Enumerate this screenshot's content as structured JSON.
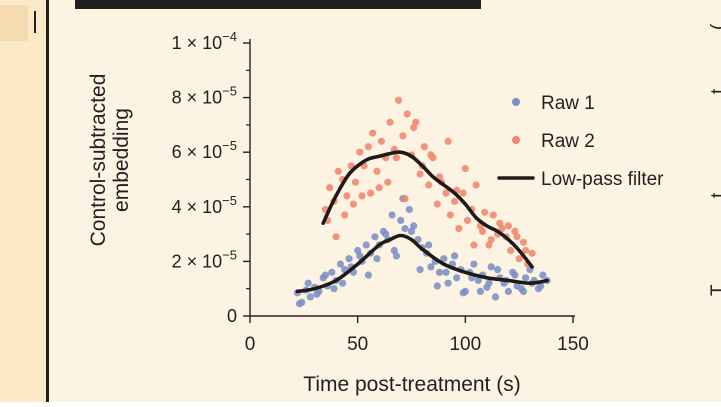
{
  "colors": {
    "panel_bg": "#fcf3e3",
    "left_strip_bg": "#fbe9c8",
    "dark": "#231f20",
    "raw1": "#7b8fc6",
    "raw2": "#f0866e",
    "filter": "#1f1a17"
  },
  "chart_data": {
    "type": "scatter",
    "title": "",
    "xlabel": "Time post-treatment (s)",
    "ylabel_lines": [
      "Control-subtracted",
      "embedding"
    ],
    "xlim": [
      0,
      150
    ],
    "ylim": [
      0,
      0.0001
    ],
    "x_ticks": [
      0,
      50,
      100,
      150
    ],
    "x_tick_labels": [
      "0",
      "50",
      "100",
      "150"
    ],
    "y_ticks": [
      0,
      2e-05,
      4e-05,
      6e-05,
      8e-05,
      0.0001
    ],
    "y_tick_labels": [
      {
        "base": "0",
        "exp": ""
      },
      {
        "base": "2 × 10",
        "exp": "−5"
      },
      {
        "base": "4 × 10",
        "exp": "−5"
      },
      {
        "base": "6 × 10",
        "exp": "−5"
      },
      {
        "base": "8 × 10",
        "exp": "−5"
      },
      {
        "base": "1 × 10",
        "exp": "−4"
      }
    ],
    "legend_position": "top-right",
    "legend": [
      {
        "label": "Raw 1",
        "kind": "marker",
        "series": "raw1"
      },
      {
        "label": "Raw 2",
        "kind": "marker",
        "series": "raw2"
      },
      {
        "label": "Low-pass filter",
        "kind": "line",
        "series": "filter"
      }
    ],
    "series": [
      {
        "name": "Raw 1",
        "kind": "scatter",
        "color_key": "raw1",
        "x": [
          22,
          24,
          26,
          28,
          30,
          32,
          34,
          36,
          38,
          40,
          42,
          44,
          46,
          48,
          50,
          52,
          54,
          56,
          58,
          60,
          62,
          64,
          66,
          68,
          70,
          72,
          74,
          76,
          78,
          80,
          82,
          84,
          86,
          88,
          90,
          92,
          94,
          96,
          98,
          100,
          102,
          104,
          106,
          108,
          110,
          112,
          114,
          116,
          118,
          120,
          122,
          124,
          126,
          128,
          130,
          132,
          134,
          136,
          138,
          23,
          27,
          31,
          35,
          39,
          43,
          47,
          51,
          55,
          59,
          63,
          67,
          71,
          75,
          79,
          83,
          87,
          91,
          95,
          99,
          103,
          107,
          111,
          115,
          119,
          123,
          127,
          131,
          135
        ],
        "y": [
          8.5e-06,
          5e-06,
          9.5e-06,
          7e-06,
          1.05e-05,
          9e-06,
          1.4e-05,
          1.1e-05,
          1.6e-05,
          1.3e-05,
          1.9e-05,
          1.7e-05,
          2.1e-05,
          1.6e-05,
          2.4e-05,
          2e-05,
          2.6e-05,
          2.3e-05,
          2.9e-05,
          2.6e-05,
          3.1e-05,
          2.8e-05,
          3.7e-05,
          2.2e-05,
          3.5e-05,
          3.2e-05,
          3.9e-05,
          3.3e-05,
          2.8e-05,
          2.5e-05,
          2.3e-05,
          1.8e-05,
          2e-05,
          1.6e-05,
          2.1e-05,
          1.2e-05,
          1.9e-05,
          1.4e-05,
          1.7e-05,
          9e-06,
          1.6e-05,
          1.9e-05,
          1.3e-05,
          1.5e-05,
          1.05e-05,
          1.8e-05,
          7e-06,
          1.4e-05,
          1.2e-05,
          9e-06,
          1.6e-05,
          1.1e-05,
          1e-05,
          1.4e-05,
          1.7e-05,
          1.3e-05,
          1e-05,
          1.5e-05,
          1.3e-05,
          4.5e-06,
          1.2e-05,
          8e-06,
          1.5e-05,
          1e-05,
          1.2e-05,
          1.8e-05,
          2.2e-05,
          1.5e-05,
          2.1e-05,
          3e-05,
          2.4e-05,
          4.3e-05,
          3.1e-05,
          1.7e-05,
          2.6e-05,
          1.1e-05,
          1.6e-05,
          2.2e-05,
          8.5e-06,
          1.4e-05,
          9e-06,
          1.2e-05,
          1.7e-05,
          1.3e-05,
          1.5e-05,
          9e-06,
          1.2e-05,
          1.1e-05
        ]
      },
      {
        "name": "Raw 2",
        "kind": "scatter",
        "color_key": "raw2",
        "x": [
          35,
          37,
          39,
          41,
          43,
          45,
          47,
          49,
          51,
          53,
          55,
          57,
          59,
          61,
          63,
          65,
          67,
          69,
          71,
          73,
          75,
          77,
          79,
          81,
          83,
          85,
          87,
          89,
          91,
          93,
          95,
          97,
          99,
          101,
          103,
          105,
          107,
          109,
          111,
          113,
          115,
          117,
          119,
          121,
          123,
          125,
          127,
          129,
          131,
          36,
          40,
          44,
          48,
          52,
          56,
          60,
          64,
          68,
          72,
          76,
          80,
          84,
          88,
          92,
          96,
          100,
          104,
          108,
          112,
          116,
          120,
          124,
          128
        ],
        "y": [
          3.9e-05,
          4.7e-05,
          4.2e-05,
          5.3e-05,
          5e-05,
          4.4e-05,
          5.5e-05,
          4.9e-05,
          6e-05,
          5.5e-05,
          6.2e-05,
          6.7e-05,
          5.3e-05,
          6.4e-05,
          5.8e-05,
          7.1e-05,
          6.1e-05,
          7.9e-05,
          6.6e-05,
          7.4e-05,
          5.9e-05,
          7.1e-05,
          5.2e-05,
          6.2e-05,
          4.8e-05,
          5.8e-05,
          4.1e-05,
          4.9e-05,
          4.5e-05,
          3.7e-05,
          4.2e-05,
          3.2e-05,
          4.5e-05,
          3.5e-05,
          3.9e-05,
          4.8e-05,
          3.3e-05,
          3.8e-05,
          2.6e-05,
          3.7e-05,
          3e-05,
          3.2e-05,
          2.9e-05,
          2.4e-05,
          3.1e-05,
          2.1e-05,
          2.7e-05,
          1.9e-05,
          2.3e-05,
          3.5e-05,
          2.9e-05,
          3.7e-05,
          4.1e-05,
          4.4e-05,
          4.5e-05,
          4.7e-05,
          4.9e-05,
          5.8e-05,
          4.3e-05,
          6.9e-05,
          5.5e-05,
          5.9e-05,
          5.1e-05,
          6.4e-05,
          4.6e-05,
          5.4e-05,
          2.6e-05,
          3.1e-05,
          2.8e-05,
          3.4e-05,
          3.3e-05,
          2.9e-05,
          2.4e-05
        ]
      },
      {
        "name": "Low-pass filter (Raw 1)",
        "kind": "line",
        "color_key": "filter",
        "x": [
          22,
          30,
          40,
          50,
          60,
          65,
          70,
          75,
          80,
          90,
          100,
          110,
          120,
          130,
          138
        ],
        "y": [
          9e-06,
          1e-05,
          1.3e-05,
          1.9e-05,
          2.6e-05,
          2.8e-05,
          2.95e-05,
          2.8e-05,
          2.45e-05,
          1.9e-05,
          1.6e-05,
          1.4e-05,
          1.3e-05,
          1.2e-05,
          1.3e-05
        ]
      },
      {
        "name": "Low-pass filter (Raw 2)",
        "kind": "line",
        "color_key": "filter",
        "x": [
          34,
          38,
          42,
          46,
          50,
          55,
          60,
          65,
          70,
          75,
          80,
          85,
          90,
          95,
          100,
          105,
          110,
          115,
          120,
          125,
          131
        ],
        "y": [
          3.4e-05,
          4.1e-05,
          4.7e-05,
          5.2e-05,
          5.5e-05,
          5.75e-05,
          5.85e-05,
          5.95e-05,
          6e-05,
          5.85e-05,
          5.5e-05,
          5.1e-05,
          4.8e-05,
          4.5e-05,
          4.1e-05,
          3.6e-05,
          3.3e-05,
          3.1e-05,
          2.8e-05,
          2.4e-05,
          1.8e-05
        ]
      }
    ]
  },
  "right_edge_fragments": [
    "(",
    "t",
    "t",
    "T"
  ]
}
